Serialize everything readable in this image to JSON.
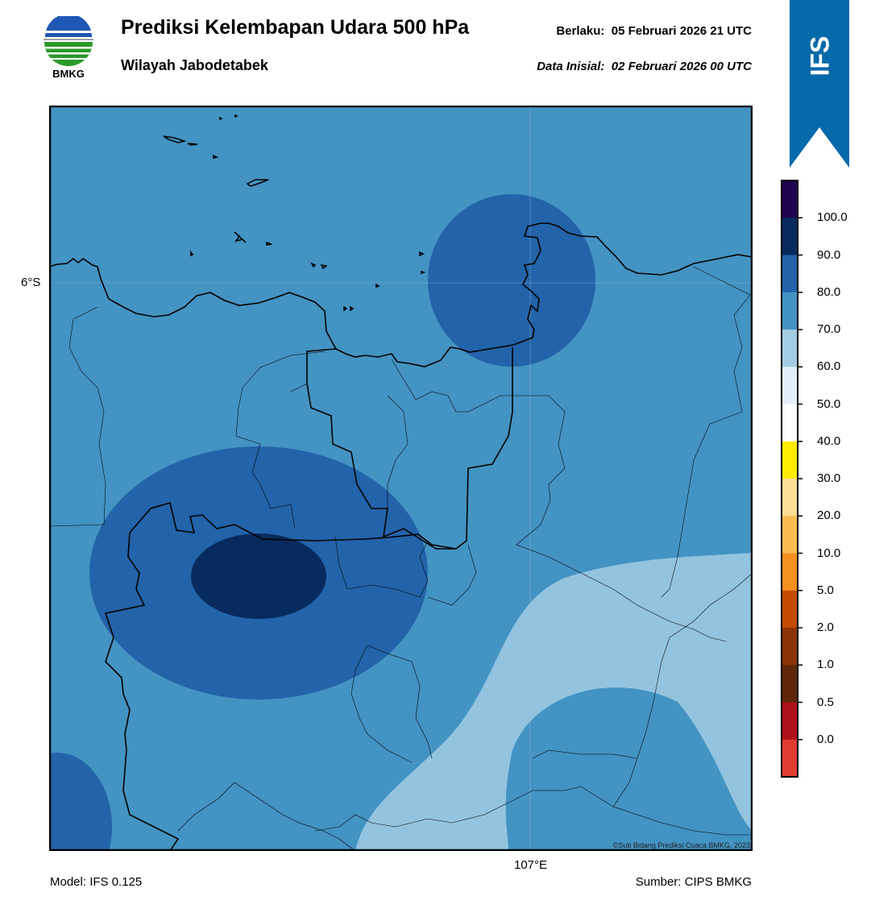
{
  "header": {
    "title": "Prediksi Kelembapan Udara 500 hPa",
    "subtitle": "Wilayah Jabodetabek",
    "valid_label": "Berlaku:",
    "valid_value": "05 Februari 2026 21 UTC",
    "init_label": "Data Inisial:",
    "init_value": "02 Februari 2026 00 UTC"
  },
  "logo": {
    "icon": "bmkg-logo-icon",
    "text": "BMKG"
  },
  "ribbon": {
    "text": "IFS",
    "color": "#0669a9"
  },
  "map": {
    "lat_label": "6°S",
    "lon_label": "107°E",
    "copyright": "©Sub Bidang Prediksi Cuaca BMKG, 2023"
  },
  "footer": {
    "model": "Model: IFS 0.125",
    "source": "Sumber: CIPS BMKG"
  },
  "colorbar": {
    "colors": [
      "#e23b32",
      "#b0101a",
      "#5e2808",
      "#8b3305",
      "#c44c04",
      "#f5901e",
      "#fbbb51",
      "#fddd96",
      "#ffec00",
      "#ffffff",
      "#e3eff8",
      "#a3cde3",
      "#4393c3",
      "#2263aa",
      "#072b5e",
      "#21044f"
    ],
    "tick_labels": [
      "0.0",
      "0.5",
      "1.0",
      "2.0",
      "5.0",
      "10.0",
      "20.0",
      "30.0",
      "40.0",
      "50.0",
      "60.0",
      "70.0",
      "80.0",
      "90.0",
      "100.0"
    ]
  },
  "field_colors": {
    "band_60_70": "#93c4df",
    "band_70_80": "#4393c3",
    "band_80_90": "#2263aa",
    "band_90_100": "#072b5e"
  }
}
